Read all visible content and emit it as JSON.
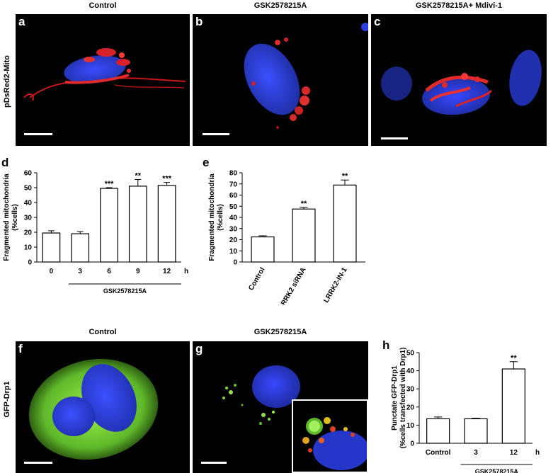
{
  "top_titles": {
    "a": "Control",
    "b": "GSK2578215A",
    "c": "GSK2578215A+ Mdivi-1"
  },
  "bottom_titles": {
    "f": "Control",
    "g": "GSK2578215A"
  },
  "panel_letters": {
    "a": "a",
    "b": "b",
    "c": "c",
    "d": "d",
    "e": "e",
    "f": "f",
    "g": "g",
    "h": "h"
  },
  "row_labels": {
    "top": "pDsRed2-Mito",
    "bottom": "GFP-Drp1"
  },
  "colors": {
    "background_micro": "#000000",
    "nucleus": "#2a3fe0",
    "mito": "#e0202a",
    "gfp": "#7fd83a"
  },
  "chart_data": [
    {
      "id": "d",
      "type": "bar",
      "categories": [
        "0",
        "3",
        "6",
        "9",
        "12"
      ],
      "category_unit": "h",
      "values": [
        19.5,
        19,
        49.5,
        51,
        51.5
      ],
      "errors": [
        1.5,
        1.5,
        0.5,
        4.5,
        2
      ],
      "significance": [
        "",
        "",
        "***",
        "**",
        "***"
      ],
      "ylabel_line1": "Fragmented mitochondria",
      "ylabel_line2": "(%cells)",
      "ylim": [
        0,
        60
      ],
      "yticks": [
        0,
        10,
        20,
        30,
        40,
        50,
        60
      ],
      "group_label": "GSK2578215A",
      "group_start_index": 1
    },
    {
      "id": "e",
      "type": "bar",
      "categories": [
        "Control",
        "LRRK2 siRNA",
        "LRRK2-IN-1"
      ],
      "values": [
        22.5,
        47.5,
        69
      ],
      "errors": [
        1,
        1.5,
        4.5
      ],
      "significance": [
        "",
        "**",
        "**"
      ],
      "ylabel_line1": "Fragmented mitochondria",
      "ylabel_line2": "(%cells)",
      "ylim": [
        0,
        80
      ],
      "yticks": [
        0,
        10,
        20,
        30,
        40,
        50,
        60,
        70,
        80
      ]
    },
    {
      "id": "h",
      "type": "bar",
      "categories": [
        "Control",
        "3",
        "12"
      ],
      "category_unit": "h",
      "values": [
        13.5,
        13.5,
        41
      ],
      "errors": [
        1,
        0.3,
        4
      ],
      "significance": [
        "",
        "",
        "**"
      ],
      "ylabel_line1": "Punctate GFP-Drp1",
      "ylabel_line2": "(%cells transfected with Drp1)",
      "ylim": [
        0,
        50
      ],
      "yticks": [
        0,
        10,
        20,
        30,
        40,
        50
      ],
      "group_label": "GSK2578215A",
      "group_start_index": 1
    }
  ]
}
